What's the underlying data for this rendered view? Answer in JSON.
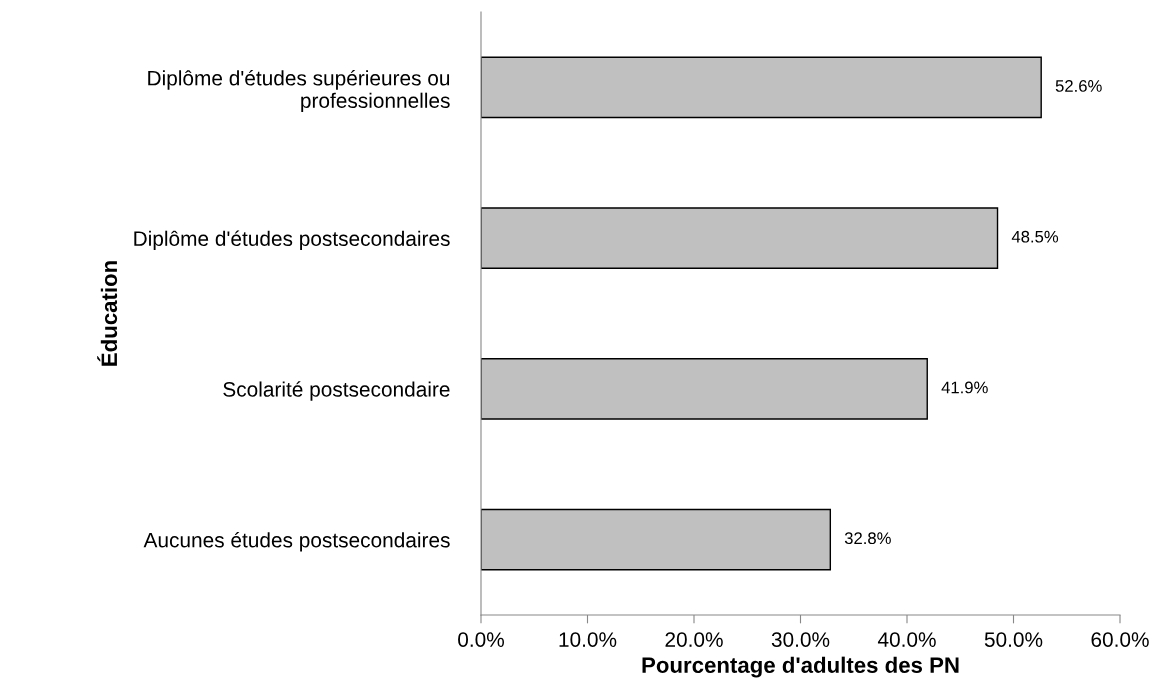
{
  "chart_data": {
    "type": "bar",
    "orientation": "horizontal",
    "xlabel": "Pourcentage d'adultes des PN",
    "ylabel": "Éducation",
    "categories": [
      "Diplôme d'études supérieures ou\nprofessionnelles",
      "Diplôme d'études postsecondaires",
      "Scolarité postsecondaire",
      "Aucunes études postsecondaires"
    ],
    "values": [
      52.6,
      48.5,
      41.9,
      32.8
    ],
    "value_labels": [
      "52.6%",
      "48.5%",
      "41.9%",
      "32.8%"
    ],
    "color": "#c0c0c0",
    "xlim": [
      0,
      60
    ],
    "xticks": [
      {
        "value": 0,
        "label": "0.0%"
      },
      {
        "value": 10,
        "label": "10.0%"
      },
      {
        "value": 20,
        "label": "20.0%"
      },
      {
        "value": 30,
        "label": "30.0%"
      },
      {
        "value": 40,
        "label": "40.0%"
      },
      {
        "value": 50,
        "label": "50.0%"
      },
      {
        "value": 60,
        "label": "60.0%"
      }
    ],
    "grid": false,
    "legend": false
  }
}
